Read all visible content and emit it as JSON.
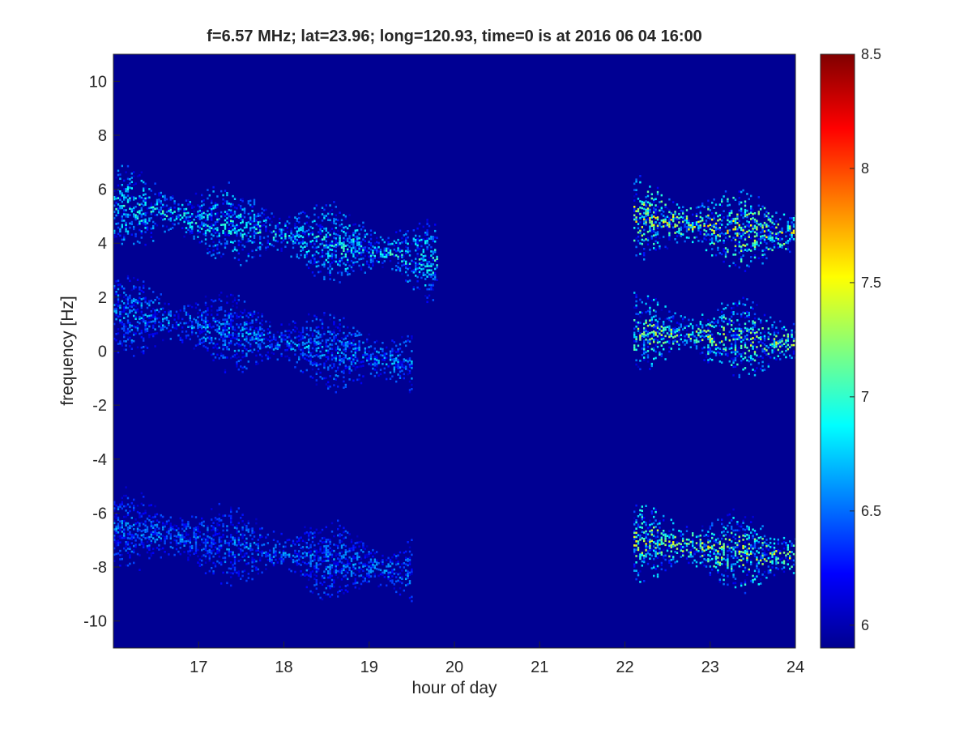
{
  "chart_data": {
    "type": "heatmap",
    "title": "f=6.57 MHz;  lat=23.96; long=120.93, time=0 is at 2016 06 04 16:00",
    "xlabel": "hour of day",
    "ylabel": "frequency [Hz]",
    "xlim": [
      16,
      24
    ],
    "ylim": [
      -11,
      11
    ],
    "x_ticks": [
      17,
      18,
      19,
      20,
      21,
      22,
      23,
      24
    ],
    "y_ticks": [
      -10,
      -8,
      -6,
      -4,
      -2,
      0,
      2,
      4,
      6,
      8,
      10
    ],
    "colorbar": {
      "range": [
        5.9,
        8.5
      ],
      "ticks": [
        6,
        6.5,
        7,
        7.5,
        8,
        8.5
      ],
      "colormap": "jet",
      "background_value": 5.95
    },
    "grid": false,
    "features": [
      {
        "name": "upper echo band, early",
        "x": [
          16,
          19.8
        ],
        "y_center": [
          5.5,
          3.3
        ],
        "intensity": 7.0
      },
      {
        "name": "central echo band, early",
        "x": [
          16,
          19.5
        ],
        "y_center": [
          1.5,
          -0.5
        ],
        "intensity": 6.7
      },
      {
        "name": "lower echo band, early",
        "x": [
          16,
          19.5
        ],
        "y_center": [
          -6.5,
          -8.2
        ],
        "intensity": 6.6
      },
      {
        "name": "upper echo band, late",
        "x": [
          22.1,
          24
        ],
        "y_center": [
          5.0,
          4.3
        ],
        "intensity": 7.6
      },
      {
        "name": "central echo band, late",
        "x": [
          22.1,
          24
        ],
        "y_center": [
          0.8,
          0.3
        ],
        "intensity": 7.4
      },
      {
        "name": "lower echo band, late",
        "x": [
          22.1,
          24
        ],
        "y_center": [
          -7.0,
          -7.6
        ],
        "intensity": 7.5
      }
    ]
  }
}
